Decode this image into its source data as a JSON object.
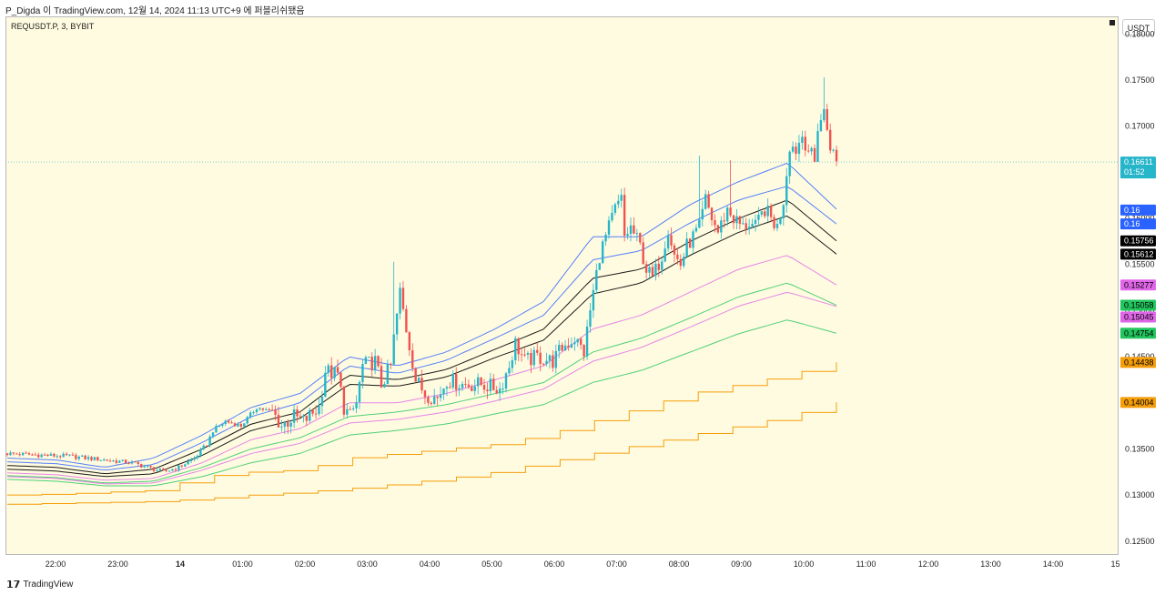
{
  "header": {
    "caption": "P_Digda 이 TradingView.com, 12월 14, 2024 11:13 UTC+9 에 퍼블리쉬됐음"
  },
  "symbol_label": "REQUSDT.P, 3, BYBIT",
  "currency_label": "USDT",
  "footer": {
    "logo_text": "TradingView",
    "logo_icon": "tradingview-logo-icon"
  },
  "chart_data": {
    "type": "candlestick",
    "x_unit": "time",
    "x_ticks": [
      "22:00",
      "23:00",
      "14",
      "01:00",
      "02:00",
      "03:00",
      "04:00",
      "05:00",
      "06:00",
      "07:00",
      "08:00",
      "09:00",
      "10:00",
      "11:00",
      "12:00",
      "13:00",
      "14:00",
      "15"
    ],
    "y_ticks": [
      "0.12500",
      "0.13000",
      "0.13500",
      "0.14000",
      "0.14500",
      "0.15000",
      "0.15500",
      "0.16000",
      "0.16500",
      "0.17000",
      "0.17500",
      "0.18000"
    ],
    "ylim": [
      0.1235,
      0.1819
    ],
    "last_price_line": 0.16611,
    "price_badges": [
      {
        "text": "0.16611",
        "sub": "01:52",
        "value": 0.16611,
        "color": "#26b5c9",
        "text_color": "#ffffff"
      },
      {
        "text": "0.16",
        "value": 0.1609,
        "color": "#2962ff",
        "text_color": "#ffffff"
      },
      {
        "text": "0.16",
        "value": 0.1594,
        "color": "#2962ff",
        "text_color": "#ffffff"
      },
      {
        "text": "0.15756",
        "value": 0.15756,
        "color": "#000000",
        "text_color": "#ffffff"
      },
      {
        "text": "0.15612",
        "value": 0.15612,
        "color": "#000000",
        "text_color": "#ffffff"
      },
      {
        "text": "0.15277",
        "value": 0.15277,
        "color": "#e066e8",
        "text_color": "#000000"
      },
      {
        "text": "0.15058",
        "value": 0.15058,
        "color": "#22c55e",
        "text_color": "#000000"
      },
      {
        "text": "0.15045",
        "value": 0.15045,
        "color": "#e066e8",
        "text_color": "#000000"
      },
      {
        "text": "0.14754",
        "value": 0.14754,
        "color": "#22c55e",
        "text_color": "#000000"
      },
      {
        "text": "0.14438",
        "value": 0.14438,
        "color": "#f59e0b",
        "text_color": "#000000"
      },
      {
        "text": "0.14004",
        "value": 0.14004,
        "color": "#f59e0b",
        "text_color": "#000000"
      }
    ],
    "colors": {
      "up": "#26b5c9",
      "down": "#ef5350"
    },
    "price_path": [
      [
        0,
        0.1345
      ],
      [
        20,
        0.1342
      ],
      [
        40,
        0.1335
      ],
      [
        50,
        0.1325
      ],
      [
        55,
        0.133
      ],
      [
        60,
        0.134
      ],
      [
        64,
        0.1355
      ],
      [
        66,
        0.137
      ],
      [
        70,
        0.138
      ],
      [
        75,
        0.1375
      ],
      [
        80,
        0.1395
      ],
      [
        85,
        0.139
      ],
      [
        88,
        0.1375
      ],
      [
        92,
        0.1385
      ],
      [
        95,
        0.138
      ],
      [
        100,
        0.1395
      ],
      [
        102,
        0.1435
      ],
      [
        106,
        0.143
      ],
      [
        108,
        0.1395
      ],
      [
        110,
        0.1385
      ],
      [
        112,
        0.14
      ],
      [
        114,
        0.144
      ],
      [
        118,
        0.1445
      ],
      [
        120,
        0.142
      ],
      [
        123,
        0.144
      ],
      [
        124,
        0.147
      ],
      [
        126,
        0.152
      ],
      [
        128,
        0.148
      ],
      [
        130,
        0.1445
      ],
      [
        131,
        0.1425
      ],
      [
        134,
        0.141
      ],
      [
        138,
        0.1405
      ],
      [
        141,
        0.1425
      ],
      [
        146,
        0.142
      ],
      [
        152,
        0.142
      ],
      [
        158,
        0.1415
      ],
      [
        161,
        0.144
      ],
      [
        163,
        0.1465
      ],
      [
        166,
        0.1445
      ],
      [
        170,
        0.145
      ],
      [
        175,
        0.1445
      ],
      [
        178,
        0.146
      ],
      [
        182,
        0.147
      ],
      [
        185,
        0.1455
      ],
      [
        187,
        0.15
      ],
      [
        190,
        0.156
      ],
      [
        193,
        0.159
      ],
      [
        195,
        0.161
      ],
      [
        197,
        0.162
      ],
      [
        198,
        0.158
      ],
      [
        200,
        0.159
      ],
      [
        203,
        0.157
      ],
      [
        205,
        0.1545
      ],
      [
        207,
        0.1535
      ],
      [
        210,
        0.156
      ],
      [
        212,
        0.159
      ],
      [
        214,
        0.156
      ],
      [
        216,
        0.155
      ],
      [
        218,
        0.157
      ],
      [
        222,
        0.159
      ],
      [
        224,
        0.162
      ],
      [
        226,
        0.16
      ],
      [
        228,
        0.1585
      ],
      [
        231,
        0.161
      ],
      [
        233,
        0.16
      ],
      [
        236,
        0.159
      ],
      [
        238,
        0.1595
      ],
      [
        240,
        0.159
      ],
      [
        243,
        0.161
      ],
      [
        245,
        0.16
      ],
      [
        247,
        0.159
      ],
      [
        249,
        0.162
      ],
      [
        251,
        0.168
      ],
      [
        253,
        0.1675
      ],
      [
        255,
        0.169
      ],
      [
        257,
        0.1675
      ],
      [
        259,
        0.166
      ],
      [
        260,
        0.17
      ],
      [
        262,
        0.1715
      ],
      [
        264,
        0.168
      ],
      [
        266,
        0.166
      ]
    ],
    "spikes": [
      {
        "t": 124,
        "high": 0.1553
      },
      {
        "t": 222,
        "high": 0.1668
      },
      {
        "t": 232,
        "high": 0.1663
      },
      {
        "t": 262,
        "high": 0.1753
      }
    ],
    "bands": [
      {
        "color": "#2962ff",
        "values": [
          0.134,
          0.1338,
          0.133,
          0.134,
          0.1365,
          0.1395,
          0.141,
          0.145,
          0.144,
          0.1455,
          0.148,
          0.151,
          0.158,
          0.158,
          0.1615,
          0.164,
          0.166,
          0.161
        ]
      },
      {
        "color": "#2962ff",
        "values": [
          0.1336,
          0.1334,
          0.1327,
          0.1333,
          0.1357,
          0.1385,
          0.14,
          0.144,
          0.1432,
          0.1446,
          0.147,
          0.1495,
          0.1555,
          0.1565,
          0.1595,
          0.162,
          0.1635,
          0.1594
        ]
      },
      {
        "color": "#000000",
        "values": [
          0.1332,
          0.133,
          0.1323,
          0.1328,
          0.135,
          0.1377,
          0.139,
          0.143,
          0.1425,
          0.1436,
          0.1458,
          0.148,
          0.1535,
          0.1545,
          0.1575,
          0.16,
          0.162,
          0.15756
        ]
      },
      {
        "color": "#000000",
        "values": [
          0.1328,
          0.1326,
          0.132,
          0.1323,
          0.1343,
          0.137,
          0.1383,
          0.142,
          0.1418,
          0.1428,
          0.1449,
          0.1468,
          0.1518,
          0.153,
          0.156,
          0.1585,
          0.1603,
          0.15612
        ]
      },
      {
        "color": "#e066e8",
        "values": [
          0.1324,
          0.1322,
          0.1316,
          0.1318,
          0.1335,
          0.136,
          0.1372,
          0.14,
          0.14,
          0.141,
          0.1425,
          0.144,
          0.148,
          0.1495,
          0.152,
          0.1545,
          0.156,
          0.15277
        ]
      },
      {
        "color": "#22c55e",
        "values": [
          0.1321,
          0.1319,
          0.1313,
          0.1315,
          0.133,
          0.135,
          0.1362,
          0.1385,
          0.139,
          0.1398,
          0.141,
          0.1422,
          0.1455,
          0.147,
          0.1492,
          0.1515,
          0.153,
          0.15058
        ]
      },
      {
        "color": "#e066e8",
        "values": [
          0.132,
          0.1318,
          0.1312,
          0.1313,
          0.1327,
          0.1345,
          0.1356,
          0.1378,
          0.1382,
          0.139,
          0.1402,
          0.1415,
          0.1445,
          0.146,
          0.1482,
          0.1505,
          0.152,
          0.15045
        ]
      },
      {
        "color": "#22c55e",
        "values": [
          0.1317,
          0.1315,
          0.131,
          0.131,
          0.132,
          0.1335,
          0.1345,
          0.1365,
          0.137,
          0.1377,
          0.1388,
          0.1398,
          0.1422,
          0.1435,
          0.1455,
          0.1475,
          0.149,
          0.14754
        ]
      }
    ],
    "steps": [
      {
        "color": "#f59e0b",
        "values": [
          0.13,
          0.1301,
          0.1303,
          0.1305,
          0.132,
          0.1325,
          0.1327,
          0.134,
          0.1345,
          0.135,
          0.1355,
          0.1365,
          0.138,
          0.1395,
          0.141,
          0.142,
          0.143,
          0.14438
        ]
      },
      {
        "color": "#f59e0b",
        "values": [
          0.129,
          0.1291,
          0.1292,
          0.1293,
          0.1296,
          0.13,
          0.1303,
          0.1307,
          0.1312,
          0.1318,
          0.1325,
          0.1335,
          0.1345,
          0.1355,
          0.1365,
          0.1375,
          0.1385,
          0.14004
        ]
      }
    ]
  }
}
